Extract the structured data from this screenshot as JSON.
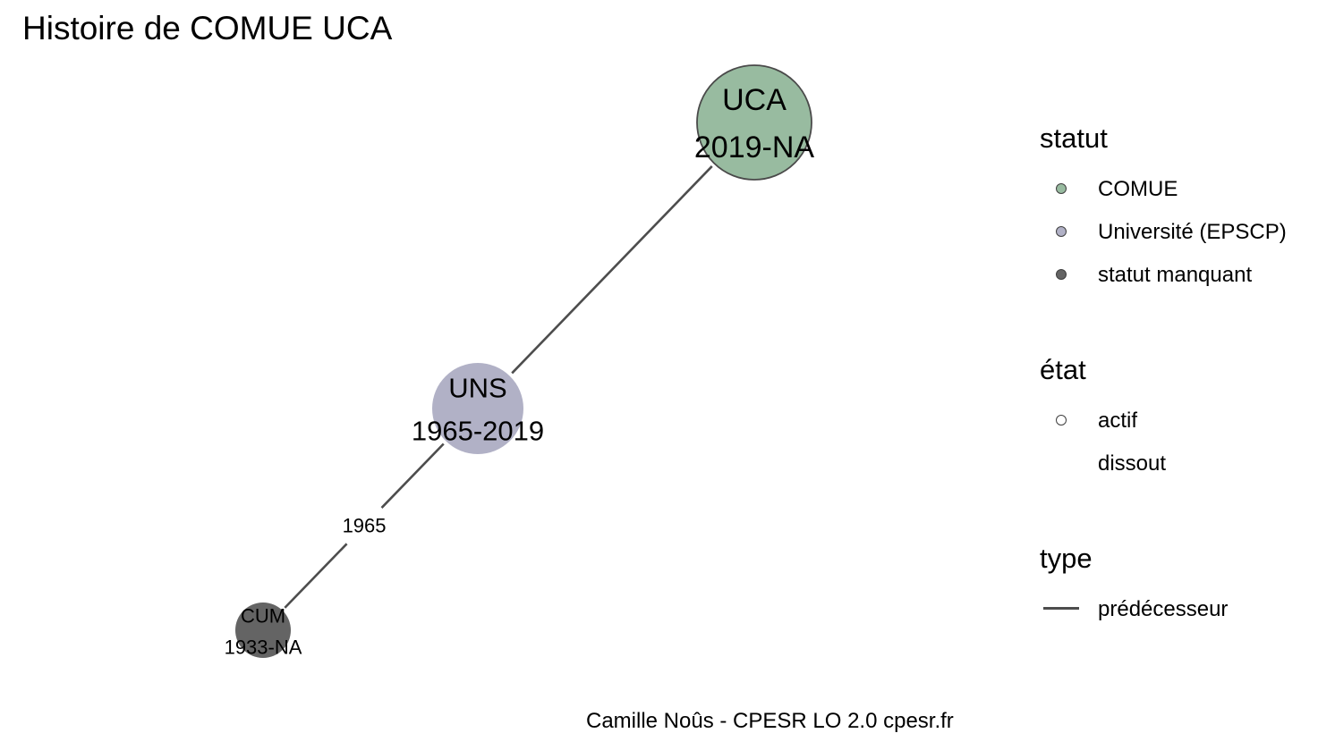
{
  "title": "Histoire de COMUE UCA",
  "caption": "Camille Noûs - CPESR LO 2.0 cpesr.fr",
  "colors": {
    "comue": "#98bba0",
    "universite": "#b1b1c6",
    "manquant": "#646464",
    "edge": "#4d4d4d",
    "node_border": "#4a4a4a"
  },
  "nodes": [
    {
      "id": "UCA",
      "name": "UCA",
      "years": "2019-NA",
      "statut": "COMUE",
      "etat": "actif"
    },
    {
      "id": "UNS",
      "name": "UNS",
      "years": "1965-2019",
      "statut": "Université (EPSCP)",
      "etat": "dissout"
    },
    {
      "id": "CUM",
      "name": "CUM",
      "years": "1933-NA",
      "statut": "statut manquant",
      "etat": "dissout"
    }
  ],
  "edges": [
    {
      "from": "UNS",
      "to": "UCA",
      "type": "prédécesseur",
      "label": ""
    },
    {
      "from": "CUM",
      "to": "UNS",
      "type": "prédécesseur",
      "label": "1965"
    }
  ],
  "legend": {
    "statut": {
      "title": "statut",
      "items": [
        {
          "label": "COMUE",
          "color": "#98bba0"
        },
        {
          "label": "Université (EPSCP)",
          "color": "#b1b1c6"
        },
        {
          "label": "statut manquant",
          "color": "#646464"
        }
      ]
    },
    "etat": {
      "title": "état",
      "items": [
        {
          "label": "actif"
        },
        {
          "label": "dissout"
        }
      ]
    },
    "type": {
      "title": "type",
      "items": [
        {
          "label": "prédécesseur"
        }
      ]
    }
  }
}
